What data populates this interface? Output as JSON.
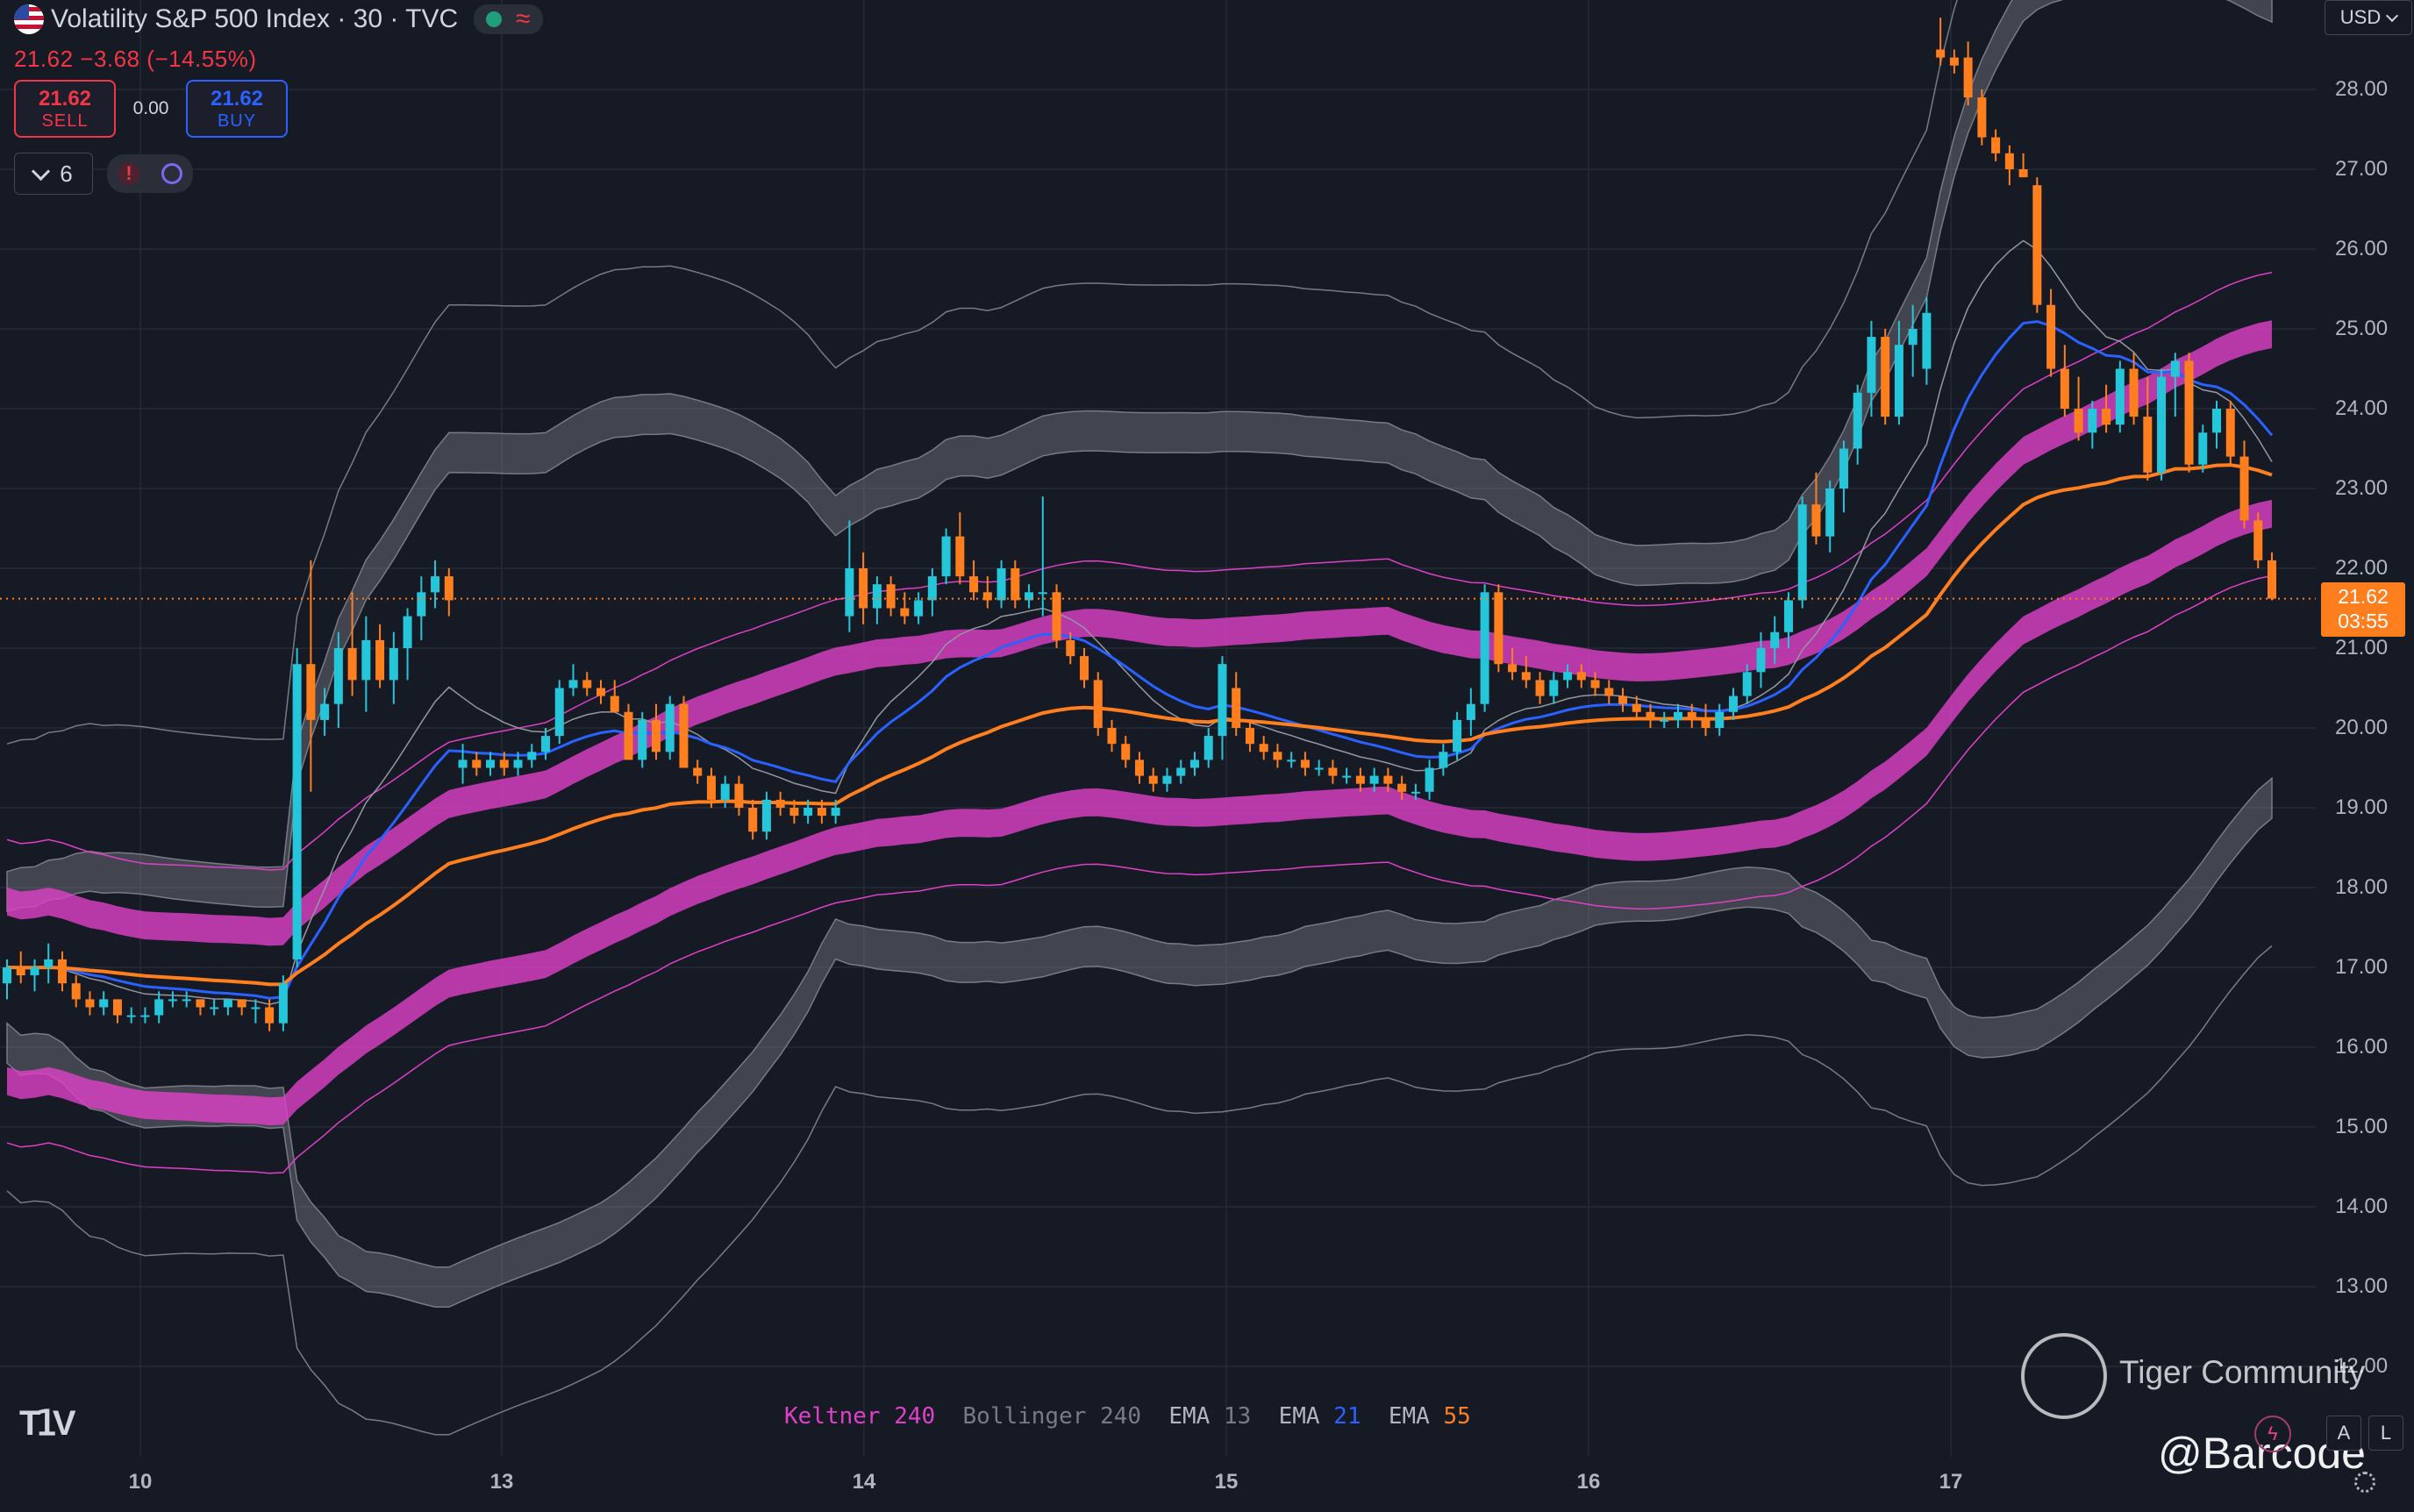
{
  "header": {
    "title": "Volatility S&P 500 Index · 30 · TVC",
    "price_line": "21.62 −3.68 (−14.55%)",
    "sell_value": "21.62",
    "sell_label": "SELL",
    "spread": "0.00",
    "buy_value": "21.62",
    "buy_label": "BUY",
    "indicator_count": "6",
    "warning_symbol": "!"
  },
  "currency": "USD",
  "current_price": {
    "value": "21.62",
    "countdown": "03:55"
  },
  "y_axis": [
    "28.00",
    "27.00",
    "26.00",
    "25.00",
    "24.00",
    "23.00",
    "22.00",
    "21.00",
    "20.00",
    "19.00",
    "18.00",
    "17.00",
    "16.00",
    "15.00",
    "14.00",
    "13.00",
    "12.00"
  ],
  "x_axis": [
    "10",
    "13",
    "14",
    "15",
    "16",
    "17"
  ],
  "indicators": [
    {
      "name": "Keltner",
      "value": "240",
      "color": "#e040c8",
      "value_color": "#e040c8"
    },
    {
      "name": "Bollinger",
      "value": "240",
      "color": "#787b86",
      "value_color": "#787b86"
    },
    {
      "name": "EMA",
      "value": "13",
      "color": "#b2b5be",
      "value_color": "#787b86"
    },
    {
      "name": "EMA",
      "value": "21",
      "color": "#b2b5be",
      "value_color": "#2962ff"
    },
    {
      "name": "EMA",
      "value": "55",
      "color": "#b2b5be",
      "value_color": "#ff7f1e"
    }
  ],
  "watermark": {
    "brand": "Tiger Community",
    "handle": "@Barcode"
  },
  "buttons": {
    "auto": "A",
    "log": "L"
  },
  "colors": {
    "up": "#26c6da",
    "down": "#ff7f1e",
    "ema13": "#9598a1",
    "ema21": "#2962ff",
    "ema55": "#ff7f1e",
    "keltner": "#e040c8",
    "bollinger": "#787b86"
  },
  "chart_data": {
    "type": "candlestick",
    "title": "Volatility S&P 500 Index · 30 · TVC",
    "x_labels": [
      "10",
      "13",
      "14",
      "15",
      "16",
      "17"
    ],
    "ylim": [
      11.9,
      28.9
    ],
    "candles": [
      {
        "o": 16.8,
        "h": 17.1,
        "l": 16.6,
        "c": 17.0
      },
      {
        "o": 17.0,
        "h": 17.2,
        "l": 16.8,
        "c": 16.9
      },
      {
        "o": 16.9,
        "h": 17.1,
        "l": 16.7,
        "c": 17.0
      },
      {
        "o": 17.0,
        "h": 17.3,
        "l": 16.8,
        "c": 17.1
      },
      {
        "o": 17.1,
        "h": 17.2,
        "l": 16.7,
        "c": 16.8
      },
      {
        "o": 16.8,
        "h": 16.9,
        "l": 16.5,
        "c": 16.6
      },
      {
        "o": 16.6,
        "h": 16.7,
        "l": 16.4,
        "c": 16.5
      },
      {
        "o": 16.5,
        "h": 16.7,
        "l": 16.4,
        "c": 16.6
      },
      {
        "o": 16.6,
        "h": 16.6,
        "l": 16.3,
        "c": 16.4
      },
      {
        "o": 16.4,
        "h": 16.5,
        "l": 16.3,
        "c": 16.4
      },
      {
        "o": 16.4,
        "h": 16.5,
        "l": 16.3,
        "c": 16.4
      },
      {
        "o": 16.4,
        "h": 16.7,
        "l": 16.3,
        "c": 16.6
      },
      {
        "o": 16.6,
        "h": 16.7,
        "l": 16.5,
        "c": 16.6
      },
      {
        "o": 16.6,
        "h": 16.7,
        "l": 16.5,
        "c": 16.6
      },
      {
        "o": 16.6,
        "h": 16.6,
        "l": 16.4,
        "c": 16.5
      },
      {
        "o": 16.5,
        "h": 16.6,
        "l": 16.4,
        "c": 16.5
      },
      {
        "o": 16.5,
        "h": 16.6,
        "l": 16.4,
        "c": 16.6
      },
      {
        "o": 16.6,
        "h": 16.6,
        "l": 16.4,
        "c": 16.5
      },
      {
        "o": 16.5,
        "h": 16.6,
        "l": 16.3,
        "c": 16.5
      },
      {
        "o": 16.5,
        "h": 16.6,
        "l": 16.2,
        "c": 16.3
      },
      {
        "o": 16.3,
        "h": 16.9,
        "l": 16.2,
        "c": 16.8
      },
      {
        "o": 17.1,
        "h": 21.0,
        "l": 17.0,
        "c": 20.8
      },
      {
        "o": 20.8,
        "h": 22.1,
        "l": 19.2,
        "c": 20.1
      },
      {
        "o": 20.1,
        "h": 20.5,
        "l": 19.9,
        "c": 20.3
      },
      {
        "o": 20.3,
        "h": 21.2,
        "l": 20.0,
        "c": 21.0
      },
      {
        "o": 21.0,
        "h": 21.7,
        "l": 20.4,
        "c": 20.6
      },
      {
        "o": 20.6,
        "h": 21.4,
        "l": 20.2,
        "c": 21.1
      },
      {
        "o": 21.1,
        "h": 21.3,
        "l": 20.5,
        "c": 20.6
      },
      {
        "o": 20.6,
        "h": 21.2,
        "l": 20.3,
        "c": 21.0
      },
      {
        "o": 21.0,
        "h": 21.5,
        "l": 20.6,
        "c": 21.4
      },
      {
        "o": 21.4,
        "h": 21.9,
        "l": 21.1,
        "c": 21.7
      },
      {
        "o": 21.7,
        "h": 22.1,
        "l": 21.5,
        "c": 21.9
      },
      {
        "o": 21.9,
        "h": 22.0,
        "l": 21.4,
        "c": 21.6
      },
      {
        "o": 19.5,
        "h": 19.8,
        "l": 19.3,
        "c": 19.6
      },
      {
        "o": 19.6,
        "h": 19.7,
        "l": 19.4,
        "c": 19.5
      },
      {
        "o": 19.5,
        "h": 19.7,
        "l": 19.4,
        "c": 19.6
      },
      {
        "o": 19.6,
        "h": 19.7,
        "l": 19.4,
        "c": 19.5
      },
      {
        "o": 19.5,
        "h": 19.7,
        "l": 19.4,
        "c": 19.6
      },
      {
        "o": 19.6,
        "h": 19.8,
        "l": 19.5,
        "c": 19.7
      },
      {
        "o": 19.7,
        "h": 20.0,
        "l": 19.6,
        "c": 19.9
      },
      {
        "o": 19.9,
        "h": 20.6,
        "l": 19.8,
        "c": 20.5
      },
      {
        "o": 20.5,
        "h": 20.8,
        "l": 20.4,
        "c": 20.6
      },
      {
        "o": 20.6,
        "h": 20.7,
        "l": 20.4,
        "c": 20.5
      },
      {
        "o": 20.5,
        "h": 20.6,
        "l": 20.3,
        "c": 20.4
      },
      {
        "o": 20.4,
        "h": 20.6,
        "l": 20.2,
        "c": 20.2
      },
      {
        "o": 20.2,
        "h": 20.3,
        "l": 19.6,
        "c": 19.6
      },
      {
        "o": 19.6,
        "h": 20.2,
        "l": 19.5,
        "c": 20.1
      },
      {
        "o": 20.1,
        "h": 20.3,
        "l": 19.6,
        "c": 19.7
      },
      {
        "o": 19.7,
        "h": 20.4,
        "l": 19.6,
        "c": 20.3
      },
      {
        "o": 20.3,
        "h": 20.4,
        "l": 19.5,
        "c": 19.5
      },
      {
        "o": 19.5,
        "h": 19.6,
        "l": 19.3,
        "c": 19.4
      },
      {
        "o": 19.4,
        "h": 19.5,
        "l": 19.0,
        "c": 19.1
      },
      {
        "o": 19.1,
        "h": 19.4,
        "l": 19.0,
        "c": 19.3
      },
      {
        "o": 19.3,
        "h": 19.4,
        "l": 18.9,
        "c": 19.0
      },
      {
        "o": 19.0,
        "h": 19.1,
        "l": 18.6,
        "c": 18.7
      },
      {
        "o": 18.7,
        "h": 19.2,
        "l": 18.6,
        "c": 19.1
      },
      {
        "o": 19.1,
        "h": 19.2,
        "l": 18.9,
        "c": 19.0
      },
      {
        "o": 19.0,
        "h": 19.1,
        "l": 18.8,
        "c": 18.9
      },
      {
        "o": 18.9,
        "h": 19.1,
        "l": 18.8,
        "c": 19.0
      },
      {
        "o": 19.0,
        "h": 19.1,
        "l": 18.8,
        "c": 18.9
      },
      {
        "o": 18.9,
        "h": 19.1,
        "l": 18.8,
        "c": 19.0
      },
      {
        "o": 21.4,
        "h": 22.6,
        "l": 21.2,
        "c": 22.0
      },
      {
        "o": 22.0,
        "h": 22.2,
        "l": 21.3,
        "c": 21.5
      },
      {
        "o": 21.5,
        "h": 21.9,
        "l": 21.3,
        "c": 21.8
      },
      {
        "o": 21.8,
        "h": 21.9,
        "l": 21.4,
        "c": 21.5
      },
      {
        "o": 21.5,
        "h": 21.7,
        "l": 21.3,
        "c": 21.4
      },
      {
        "o": 21.4,
        "h": 21.7,
        "l": 21.3,
        "c": 21.6
      },
      {
        "o": 21.6,
        "h": 22.0,
        "l": 21.4,
        "c": 21.9
      },
      {
        "o": 21.9,
        "h": 22.5,
        "l": 21.8,
        "c": 22.4
      },
      {
        "o": 22.4,
        "h": 22.7,
        "l": 21.8,
        "c": 21.9
      },
      {
        "o": 21.9,
        "h": 22.1,
        "l": 21.6,
        "c": 21.7
      },
      {
        "o": 21.7,
        "h": 21.9,
        "l": 21.5,
        "c": 21.6
      },
      {
        "o": 21.6,
        "h": 22.1,
        "l": 21.5,
        "c": 22.0
      },
      {
        "o": 22.0,
        "h": 22.1,
        "l": 21.5,
        "c": 21.6
      },
      {
        "o": 21.6,
        "h": 21.8,
        "l": 21.5,
        "c": 21.7
      },
      {
        "o": 21.7,
        "h": 22.9,
        "l": 21.4,
        "c": 21.7
      },
      {
        "o": 21.7,
        "h": 21.8,
        "l": 21.0,
        "c": 21.1
      },
      {
        "o": 21.1,
        "h": 21.2,
        "l": 20.8,
        "c": 20.9
      },
      {
        "o": 20.9,
        "h": 21.0,
        "l": 20.5,
        "c": 20.6
      },
      {
        "o": 20.6,
        "h": 20.7,
        "l": 19.9,
        "c": 20.0
      },
      {
        "o": 20.0,
        "h": 20.1,
        "l": 19.7,
        "c": 19.8
      },
      {
        "o": 19.8,
        "h": 19.9,
        "l": 19.5,
        "c": 19.6
      },
      {
        "o": 19.6,
        "h": 19.7,
        "l": 19.3,
        "c": 19.4
      },
      {
        "o": 19.4,
        "h": 19.5,
        "l": 19.2,
        "c": 19.3
      },
      {
        "o": 19.3,
        "h": 19.5,
        "l": 19.2,
        "c": 19.4
      },
      {
        "o": 19.4,
        "h": 19.6,
        "l": 19.3,
        "c": 19.5
      },
      {
        "o": 19.5,
        "h": 19.7,
        "l": 19.4,
        "c": 19.6
      },
      {
        "o": 19.6,
        "h": 20.0,
        "l": 19.5,
        "c": 19.9
      },
      {
        "o": 19.9,
        "h": 20.9,
        "l": 19.6,
        "c": 20.8
      },
      {
        "o": 20.5,
        "h": 20.7,
        "l": 19.9,
        "c": 20.0
      },
      {
        "o": 20.0,
        "h": 20.1,
        "l": 19.7,
        "c": 19.8
      },
      {
        "o": 19.8,
        "h": 19.9,
        "l": 19.6,
        "c": 19.7
      },
      {
        "o": 19.7,
        "h": 19.8,
        "l": 19.5,
        "c": 19.6
      },
      {
        "o": 19.6,
        "h": 19.7,
        "l": 19.5,
        "c": 19.6
      },
      {
        "o": 19.6,
        "h": 19.7,
        "l": 19.4,
        "c": 19.5
      },
      {
        "o": 19.5,
        "h": 19.6,
        "l": 19.4,
        "c": 19.5
      },
      {
        "o": 19.5,
        "h": 19.6,
        "l": 19.3,
        "c": 19.4
      },
      {
        "o": 19.4,
        "h": 19.5,
        "l": 19.3,
        "c": 19.4
      },
      {
        "o": 19.4,
        "h": 19.5,
        "l": 19.2,
        "c": 19.3
      },
      {
        "o": 19.3,
        "h": 19.5,
        "l": 19.2,
        "c": 19.4
      },
      {
        "o": 19.4,
        "h": 19.5,
        "l": 19.2,
        "c": 19.3
      },
      {
        "o": 19.3,
        "h": 19.4,
        "l": 19.1,
        "c": 19.2
      },
      {
        "o": 19.2,
        "h": 19.3,
        "l": 19.1,
        "c": 19.2
      },
      {
        "o": 19.2,
        "h": 19.6,
        "l": 19.1,
        "c": 19.5
      },
      {
        "o": 19.5,
        "h": 19.8,
        "l": 19.4,
        "c": 19.7
      },
      {
        "o": 19.7,
        "h": 20.2,
        "l": 19.6,
        "c": 20.1
      },
      {
        "o": 20.1,
        "h": 20.5,
        "l": 19.9,
        "c": 20.3
      },
      {
        "o": 20.3,
        "h": 21.8,
        "l": 20.2,
        "c": 21.7
      },
      {
        "o": 21.7,
        "h": 21.8,
        "l": 20.7,
        "c": 20.8
      },
      {
        "o": 20.8,
        "h": 21.0,
        "l": 20.6,
        "c": 20.7
      },
      {
        "o": 20.7,
        "h": 20.9,
        "l": 20.5,
        "c": 20.6
      },
      {
        "o": 20.6,
        "h": 20.7,
        "l": 20.3,
        "c": 20.4
      },
      {
        "o": 20.4,
        "h": 20.7,
        "l": 20.3,
        "c": 20.6
      },
      {
        "o": 20.6,
        "h": 20.8,
        "l": 20.5,
        "c": 20.7
      },
      {
        "o": 20.7,
        "h": 20.8,
        "l": 20.5,
        "c": 20.6
      },
      {
        "o": 20.6,
        "h": 20.7,
        "l": 20.4,
        "c": 20.5
      },
      {
        "o": 20.5,
        "h": 20.6,
        "l": 20.3,
        "c": 20.4
      },
      {
        "o": 20.4,
        "h": 20.5,
        "l": 20.2,
        "c": 20.3
      },
      {
        "o": 20.3,
        "h": 20.4,
        "l": 20.1,
        "c": 20.2
      },
      {
        "o": 20.2,
        "h": 20.3,
        "l": 20.0,
        "c": 20.1
      },
      {
        "o": 20.1,
        "h": 20.2,
        "l": 20.0,
        "c": 20.1
      },
      {
        "o": 20.1,
        "h": 20.3,
        "l": 20.0,
        "c": 20.2
      },
      {
        "o": 20.2,
        "h": 20.3,
        "l": 20.0,
        "c": 20.1
      },
      {
        "o": 20.1,
        "h": 20.3,
        "l": 19.9,
        "c": 20.0
      },
      {
        "o": 20.0,
        "h": 20.3,
        "l": 19.9,
        "c": 20.2
      },
      {
        "o": 20.2,
        "h": 20.5,
        "l": 20.1,
        "c": 20.4
      },
      {
        "o": 20.4,
        "h": 20.8,
        "l": 20.3,
        "c": 20.7
      },
      {
        "o": 20.7,
        "h": 21.2,
        "l": 20.5,
        "c": 21.0
      },
      {
        "o": 21.0,
        "h": 21.4,
        "l": 20.8,
        "c": 21.2
      },
      {
        "o": 21.2,
        "h": 21.7,
        "l": 21.0,
        "c": 21.6
      },
      {
        "o": 21.6,
        "h": 22.9,
        "l": 21.5,
        "c": 22.8
      },
      {
        "o": 22.8,
        "h": 23.2,
        "l": 22.3,
        "c": 22.4
      },
      {
        "o": 22.4,
        "h": 23.1,
        "l": 22.2,
        "c": 23.0
      },
      {
        "o": 23.0,
        "h": 23.6,
        "l": 22.7,
        "c": 23.5
      },
      {
        "o": 23.5,
        "h": 24.3,
        "l": 23.3,
        "c": 24.2
      },
      {
        "o": 24.2,
        "h": 25.1,
        "l": 23.9,
        "c": 24.9
      },
      {
        "o": 24.9,
        "h": 25.0,
        "l": 23.8,
        "c": 23.9
      },
      {
        "o": 23.9,
        "h": 25.1,
        "l": 23.8,
        "c": 24.8
      },
      {
        "o": 24.8,
        "h": 25.3,
        "l": 24.4,
        "c": 25.0
      },
      {
        "o": 24.5,
        "h": 25.4,
        "l": 24.3,
        "c": 25.2
      },
      {
        "o": 28.5,
        "h": 28.9,
        "l": 28.3,
        "c": 28.4
      },
      {
        "o": 28.4,
        "h": 28.5,
        "l": 28.2,
        "c": 28.3
      },
      {
        "o": 28.4,
        "h": 28.6,
        "l": 27.8,
        "c": 27.9
      },
      {
        "o": 27.9,
        "h": 28.0,
        "l": 27.3,
        "c": 27.4
      },
      {
        "o": 27.4,
        "h": 27.5,
        "l": 27.1,
        "c": 27.2
      },
      {
        "o": 27.2,
        "h": 27.3,
        "l": 26.8,
        "c": 27.0
      },
      {
        "o": 27.0,
        "h": 27.2,
        "l": 26.9,
        "c": 26.9
      },
      {
        "o": 26.8,
        "h": 26.9,
        "l": 25.2,
        "c": 25.3
      },
      {
        "o": 25.3,
        "h": 25.5,
        "l": 24.4,
        "c": 24.5
      },
      {
        "o": 24.5,
        "h": 24.8,
        "l": 23.9,
        "c": 24.0
      },
      {
        "o": 24.0,
        "h": 24.4,
        "l": 23.6,
        "c": 23.7
      },
      {
        "o": 23.7,
        "h": 24.1,
        "l": 23.5,
        "c": 24.0
      },
      {
        "o": 24.0,
        "h": 24.3,
        "l": 23.7,
        "c": 23.8
      },
      {
        "o": 23.8,
        "h": 24.6,
        "l": 23.7,
        "c": 24.5
      },
      {
        "o": 24.5,
        "h": 24.7,
        "l": 23.8,
        "c": 23.9
      },
      {
        "o": 23.9,
        "h": 24.4,
        "l": 23.1,
        "c": 23.2
      },
      {
        "o": 23.2,
        "h": 24.5,
        "l": 23.1,
        "c": 24.4
      },
      {
        "o": 24.4,
        "h": 24.7,
        "l": 23.9,
        "c": 24.6
      },
      {
        "o": 24.6,
        "h": 24.7,
        "l": 23.2,
        "c": 23.3
      },
      {
        "o": 23.3,
        "h": 23.8,
        "l": 23.2,
        "c": 23.7
      },
      {
        "o": 23.7,
        "h": 24.1,
        "l": 23.5,
        "c": 24.0
      },
      {
        "o": 24.0,
        "h": 24.1,
        "l": 23.3,
        "c": 23.4
      },
      {
        "o": 23.4,
        "h": 23.6,
        "l": 22.5,
        "c": 22.6
      },
      {
        "o": 22.6,
        "h": 22.7,
        "l": 22.0,
        "c": 22.1
      },
      {
        "o": 22.1,
        "h": 22.2,
        "l": 21.6,
        "c": 21.62
      }
    ]
  }
}
